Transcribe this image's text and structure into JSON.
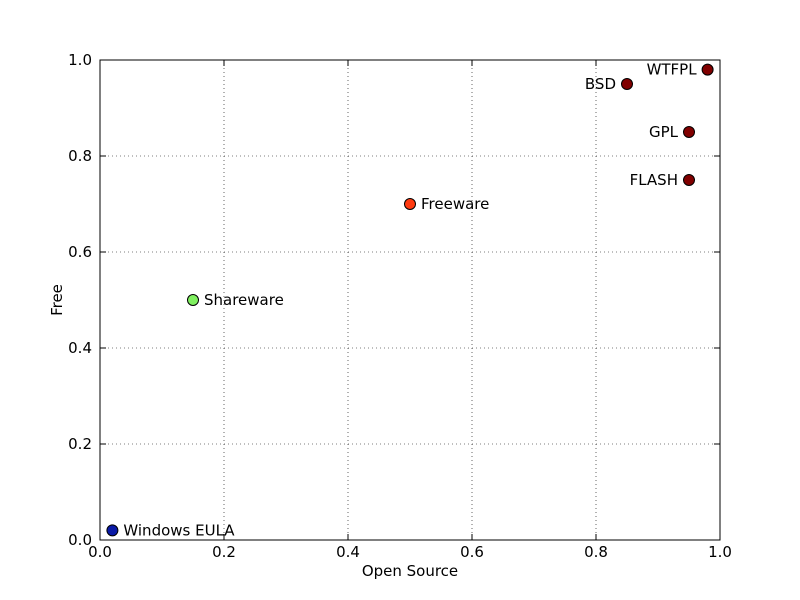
{
  "chart_data": {
    "type": "scatter",
    "title": "",
    "xlabel": "Open Source",
    "ylabel": "Free",
    "xlim": [
      0.0,
      1.0
    ],
    "ylim": [
      0.0,
      1.0
    ],
    "grid": true,
    "x_ticks": [
      "0.0",
      "0.2",
      "0.4",
      "0.6",
      "0.8",
      "1.0"
    ],
    "y_ticks": [
      "0.0",
      "0.2",
      "0.4",
      "0.6",
      "0.8",
      "1.0"
    ],
    "points": [
      {
        "label": "Windows EULA",
        "x": 0.02,
        "y": 0.02,
        "color": "#0a1aa6",
        "label_side": "right"
      },
      {
        "label": "Shareware",
        "x": 0.15,
        "y": 0.5,
        "color": "#80f060",
        "label_side": "right"
      },
      {
        "label": "Freeware",
        "x": 0.5,
        "y": 0.7,
        "color": "#ff3a10",
        "label_side": "right"
      },
      {
        "label": "BSD",
        "x": 0.85,
        "y": 0.95,
        "color": "#800000",
        "label_side": "left"
      },
      {
        "label": "WTFPL",
        "x": 0.98,
        "y": 0.98,
        "color": "#800000",
        "label_side": "left"
      },
      {
        "label": "GPL",
        "x": 0.95,
        "y": 0.85,
        "color": "#800000",
        "label_side": "left"
      },
      {
        "label": "FLASH",
        "x": 0.95,
        "y": 0.75,
        "color": "#800000",
        "label_side": "left"
      }
    ]
  }
}
